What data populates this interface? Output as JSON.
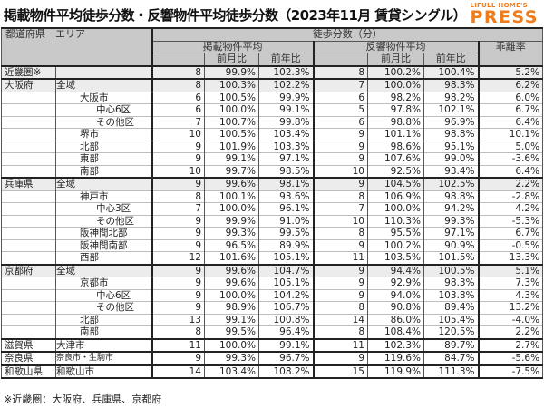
{
  "header": {
    "title": "掲載物件平均徒歩分数・反響物件平均徒歩分数（2023年11月 賃貸シングル）",
    "logo_top": "LIFULL HOME'S",
    "logo_main": "PRESS",
    "brand_color": "#f07c1b"
  },
  "table": {
    "headers": {
      "pref_area": "都道府県　エリア",
      "walk_minutes": "徒歩分数（分）",
      "listed_avg": "掲載物件平均",
      "inquiry_avg": "反響物件平均",
      "mom": "前月比",
      "yoy": "前年比",
      "deviation": "乖離率"
    },
    "rows": [
      {
        "pref": "近畿圏※",
        "area": "",
        "level": 0,
        "l_min": "8",
        "l_mom": "99.9%",
        "l_yoy": "102.3%",
        "r_min": "8",
        "r_mom": "100.2%",
        "r_yoy": "100.4%",
        "dev": "5.2%"
      },
      {
        "pref": "大阪府",
        "area": "全域",
        "level": 1,
        "l_min": "8",
        "l_mom": "100.3%",
        "l_yoy": "102.2%",
        "r_min": "7",
        "r_mom": "100.0%",
        "r_yoy": "98.3%",
        "dev": "6.2%"
      },
      {
        "pref": "",
        "area": "大阪市",
        "level": 2,
        "l_min": "6",
        "l_mom": "100.5%",
        "l_yoy": "99.9%",
        "r_min": "6",
        "r_mom": "98.2%",
        "r_yoy": "98.2%",
        "dev": "6.0%"
      },
      {
        "pref": "",
        "area": "中心6区",
        "level": 3,
        "l_min": "6",
        "l_mom": "100.0%",
        "l_yoy": "99.1%",
        "r_min": "5",
        "r_mom": "97.8%",
        "r_yoy": "102.1%",
        "dev": "6.7%"
      },
      {
        "pref": "",
        "area": "その他区",
        "level": 3,
        "l_min": "7",
        "l_mom": "100.7%",
        "l_yoy": "99.8%",
        "r_min": "6",
        "r_mom": "98.8%",
        "r_yoy": "96.9%",
        "dev": "6.4%"
      },
      {
        "pref": "",
        "area": "堺市",
        "level": 2,
        "l_min": "10",
        "l_mom": "100.5%",
        "l_yoy": "103.4%",
        "r_min": "9",
        "r_mom": "101.1%",
        "r_yoy": "98.8%",
        "dev": "10.1%"
      },
      {
        "pref": "",
        "area": "北部",
        "level": 2,
        "l_min": "9",
        "l_mom": "101.9%",
        "l_yoy": "103.3%",
        "r_min": "9",
        "r_mom": "98.6%",
        "r_yoy": "95.1%",
        "dev": "5.0%"
      },
      {
        "pref": "",
        "area": "東部",
        "level": 2,
        "l_min": "9",
        "l_mom": "99.1%",
        "l_yoy": "97.1%",
        "r_min": "9",
        "r_mom": "107.6%",
        "r_yoy": "99.0%",
        "dev": "-3.6%"
      },
      {
        "pref": "",
        "area": "南部",
        "level": 2,
        "l_min": "10",
        "l_mom": "99.7%",
        "l_yoy": "98.5%",
        "r_min": "10",
        "r_mom": "92.5%",
        "r_yoy": "93.4%",
        "dev": "6.4%"
      },
      {
        "pref": "兵庫県",
        "area": "全域",
        "level": 1,
        "l_min": "9",
        "l_mom": "99.6%",
        "l_yoy": "98.1%",
        "r_min": "9",
        "r_mom": "104.5%",
        "r_yoy": "102.5%",
        "dev": "2.2%"
      },
      {
        "pref": "",
        "area": "神戸市",
        "level": 2,
        "l_min": "8",
        "l_mom": "100.1%",
        "l_yoy": "93.6%",
        "r_min": "8",
        "r_mom": "106.9%",
        "r_yoy": "98.8%",
        "dev": "-2.8%"
      },
      {
        "pref": "",
        "area": "中心3区",
        "level": 3,
        "l_min": "7",
        "l_mom": "100.0%",
        "l_yoy": "96.1%",
        "r_min": "7",
        "r_mom": "100.0%",
        "r_yoy": "94.2%",
        "dev": "4.2%"
      },
      {
        "pref": "",
        "area": "その他区",
        "level": 3,
        "l_min": "9",
        "l_mom": "99.9%",
        "l_yoy": "91.0%",
        "r_min": "10",
        "r_mom": "110.3%",
        "r_yoy": "99.3%",
        "dev": "-5.3%"
      },
      {
        "pref": "",
        "area": "阪神間北部",
        "level": 2,
        "l_min": "9",
        "l_mom": "99.3%",
        "l_yoy": "99.5%",
        "r_min": "8",
        "r_mom": "95.5%",
        "r_yoy": "97.1%",
        "dev": "6.7%"
      },
      {
        "pref": "",
        "area": "阪神間南部",
        "level": 2,
        "l_min": "9",
        "l_mom": "96.5%",
        "l_yoy": "89.9%",
        "r_min": "9",
        "r_mom": "100.2%",
        "r_yoy": "90.9%",
        "dev": "-0.5%"
      },
      {
        "pref": "",
        "area": "西部",
        "level": 2,
        "l_min": "12",
        "l_mom": "101.6%",
        "l_yoy": "105.1%",
        "r_min": "11",
        "r_mom": "103.5%",
        "r_yoy": "101.5%",
        "dev": "13.3%"
      },
      {
        "pref": "京都府",
        "area": "全域",
        "level": 1,
        "l_min": "9",
        "l_mom": "99.6%",
        "l_yoy": "104.7%",
        "r_min": "9",
        "r_mom": "94.4%",
        "r_yoy": "100.5%",
        "dev": "5.1%"
      },
      {
        "pref": "",
        "area": "京都市",
        "level": 2,
        "l_min": "9",
        "l_mom": "99.6%",
        "l_yoy": "105.1%",
        "r_min": "9",
        "r_mom": "92.9%",
        "r_yoy": "98.3%",
        "dev": "7.3%"
      },
      {
        "pref": "",
        "area": "中心6区",
        "level": 3,
        "l_min": "9",
        "l_mom": "100.0%",
        "l_yoy": "104.2%",
        "r_min": "9",
        "r_mom": "94.0%",
        "r_yoy": "103.8%",
        "dev": "4.3%"
      },
      {
        "pref": "",
        "area": "その他区",
        "level": 3,
        "l_min": "9",
        "l_mom": "98.9%",
        "l_yoy": "106.7%",
        "r_min": "8",
        "r_mom": "90.8%",
        "r_yoy": "89.4%",
        "dev": "13.2%"
      },
      {
        "pref": "",
        "area": "北部",
        "level": 2,
        "l_min": "13",
        "l_mom": "99.1%",
        "l_yoy": "100.8%",
        "r_min": "14",
        "r_mom": "86.0%",
        "r_yoy": "105.4%",
        "dev": "-4.0%"
      },
      {
        "pref": "",
        "area": "南部",
        "level": 2,
        "l_min": "8",
        "l_mom": "99.5%",
        "l_yoy": "96.4%",
        "r_min": "8",
        "r_mom": "108.4%",
        "r_yoy": "120.5%",
        "dev": "2.2%"
      },
      {
        "pref": "滋賀県",
        "area": "大津市",
        "level": 1,
        "l_min": "11",
        "l_mom": "100.0%",
        "l_yoy": "99.1%",
        "r_min": "11",
        "r_mom": "102.3%",
        "r_yoy": "89.7%",
        "dev": "2.7%"
      },
      {
        "pref": "奈良県",
        "area": "奈良市・生駒市",
        "level": 4,
        "l_min": "9",
        "l_mom": "99.3%",
        "l_yoy": "96.7%",
        "r_min": "9",
        "r_mom": "119.6%",
        "r_yoy": "84.7%",
        "dev": "-5.6%"
      },
      {
        "pref": "和歌山県",
        "area": "和歌山市",
        "level": 1,
        "l_min": "14",
        "l_mom": "103.4%",
        "l_yoy": "108.2%",
        "r_min": "15",
        "r_mom": "119.9%",
        "r_yoy": "111.3%",
        "dev": "-7.5%"
      }
    ]
  },
  "footnote": "※近畿圏：大阪府、兵庫県、京都府"
}
